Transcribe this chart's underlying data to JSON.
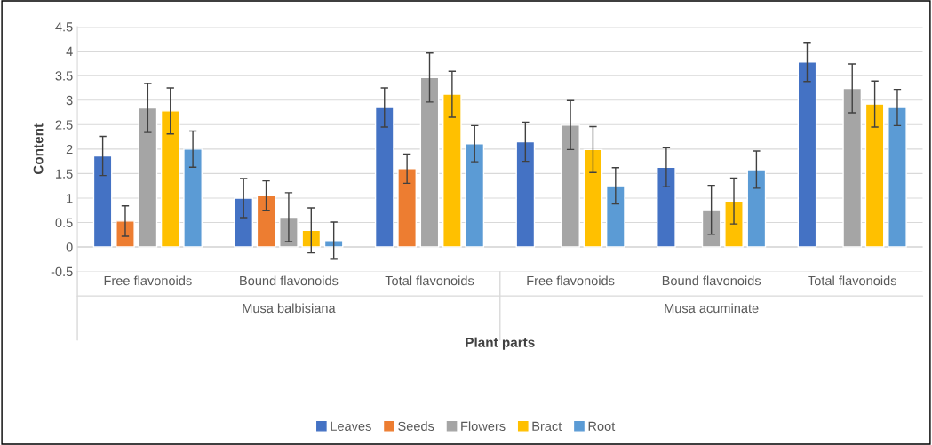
{
  "chart_data": {
    "type": "bar",
    "xlabel": "Plant parts",
    "ylabel": "Content",
    "categories": [
      "Free flavonoids",
      "Bound flavonoids",
      "Total flavonoids",
      "Free flavonoids",
      "Bound flavonoids",
      "Total flavonoids"
    ],
    "series": [
      {
        "name": "Leaves",
        "color": "#4472c4",
        "values": [
          1.86,
          1.0,
          2.85,
          2.15,
          1.63,
          3.78
        ],
        "errors": [
          0.4,
          0.4,
          0.4,
          0.4,
          0.4,
          0.4
        ]
      },
      {
        "name": "Seeds",
        "color": "#ed7d31",
        "values": [
          0.53,
          1.05,
          1.6,
          null,
          null,
          null
        ],
        "errors": [
          0.31,
          0.3,
          0.3,
          null,
          null,
          null
        ]
      },
      {
        "name": "Flowers",
        "color": "#a5a5a5",
        "values": [
          2.84,
          0.61,
          3.46,
          2.49,
          0.76,
          3.24
        ],
        "errors": [
          0.5,
          0.5,
          0.5,
          0.5,
          0.5,
          0.5
        ]
      },
      {
        "name": "Bract",
        "color": "#ffc000",
        "values": [
          2.78,
          0.34,
          3.12,
          1.99,
          0.94,
          2.92
        ],
        "errors": [
          0.47,
          0.46,
          0.47,
          0.47,
          0.47,
          0.47
        ]
      },
      {
        "name": "Root",
        "color": "#5b9bd5",
        "values": [
          2.0,
          0.13,
          2.11,
          1.25,
          1.58,
          2.85
        ],
        "errors": [
          0.37,
          0.38,
          0.37,
          0.37,
          0.38,
          0.37
        ]
      }
    ],
    "annotations": [
      "Musa balbisiana",
      "Musa acuminate"
    ],
    "ylim": [
      -0.5,
      4.5
    ],
    "yticks": [
      -0.5,
      0,
      0.5,
      1,
      1.5,
      2,
      2.5,
      3,
      3.5,
      4,
      4.5
    ],
    "grid": "y",
    "legend": "bottom"
  }
}
